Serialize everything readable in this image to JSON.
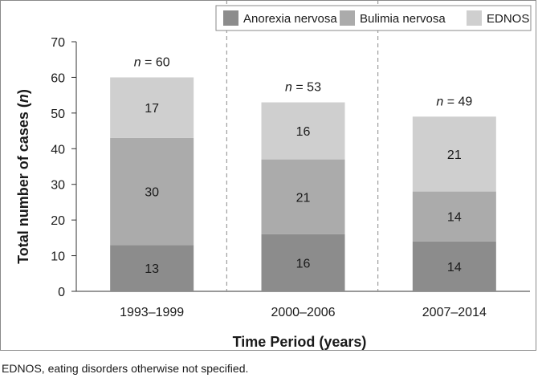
{
  "chart_data": {
    "type": "bar",
    "stacked": true,
    "categories": [
      "1993–1999",
      "2000–2006",
      "2007–2014"
    ],
    "series": [
      {
        "name": "Anorexia nervosa",
        "values": [
          13,
          16,
          14
        ],
        "color": "#8c8c8c"
      },
      {
        "name": "Bulimia nervosa",
        "values": [
          30,
          21,
          14
        ],
        "color": "#ababab"
      },
      {
        "name": "EDNOS",
        "values": [
          17,
          16,
          21
        ],
        "color": "#cfcfcf"
      }
    ],
    "totals": [
      {
        "var": "n",
        "text": " = 60"
      },
      {
        "var": "n",
        "text": " = 53"
      },
      {
        "var": "n",
        "text": " = 49"
      }
    ],
    "xlabel": "Time Period (years)",
    "ylabel_main": "Total number of cases (",
    "ylabel_var": "n",
    "ylabel_close": ")",
    "ylim": [
      0,
      70
    ],
    "yticks": [
      0,
      10,
      20,
      30,
      40,
      50,
      60,
      70
    ],
    "grid": false,
    "separators": "dashed vertical lines between periods",
    "legend": "top-right"
  },
  "footnote": "EDNOS, eating disorders otherwise not specified."
}
